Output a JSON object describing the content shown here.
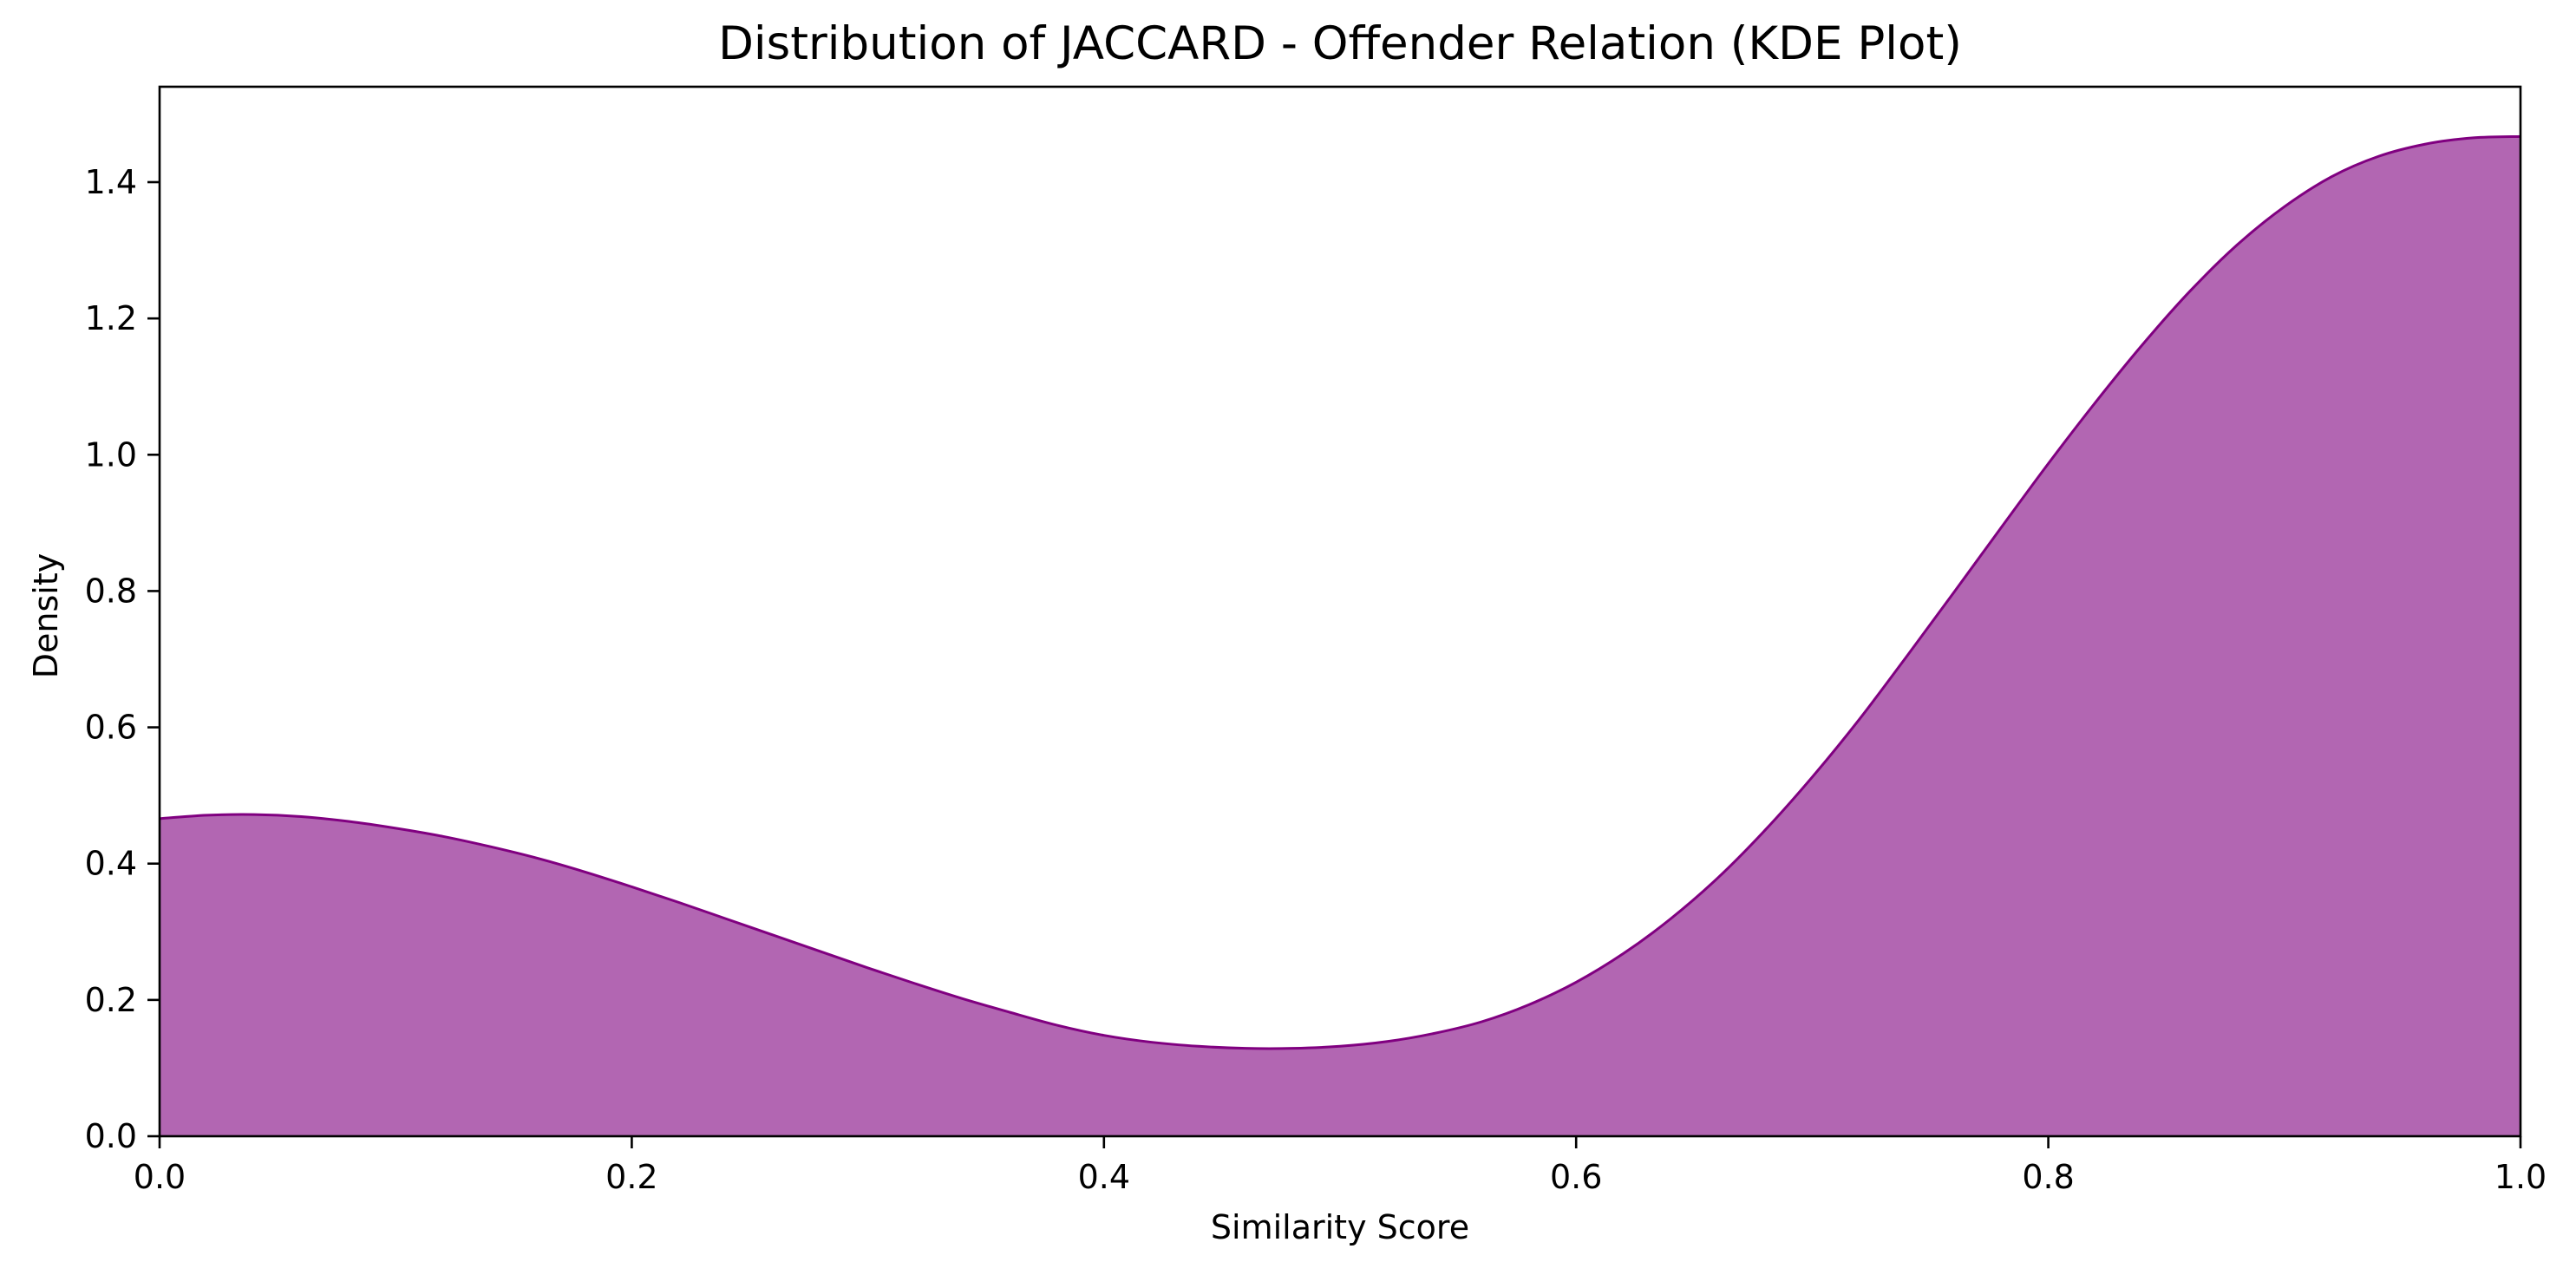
{
  "chart_data": {
    "type": "area",
    "title": "Distribution of JACCARD - Offender Relation (KDE Plot)",
    "xlabel": "Similarity Score",
    "ylabel": "Density",
    "xlim": [
      0.0,
      1.0
    ],
    "ylim": [
      0.0,
      1.54
    ],
    "xticks": [
      0.0,
      0.2,
      0.4,
      0.6,
      0.8,
      1.0
    ],
    "xtick_labels": [
      "0.0",
      "0.2",
      "0.4",
      "0.6",
      "0.8",
      "1.0"
    ],
    "yticks": [
      0.0,
      0.2,
      0.4,
      0.6,
      0.8,
      1.0,
      1.2,
      1.4
    ],
    "ytick_labels": [
      "0.0",
      "0.2",
      "0.4",
      "0.6",
      "0.8",
      "1.0",
      "1.2",
      "1.4"
    ],
    "grid": false,
    "legend": "none",
    "series": [
      {
        "color": "#800080",
        "fill_color": "#b266b2",
        "x": [
          0.0,
          0.02,
          0.04,
          0.06,
          0.08,
          0.1,
          0.12,
          0.14,
          0.16,
          0.18,
          0.2,
          0.22,
          0.24,
          0.26,
          0.28,
          0.3,
          0.32,
          0.34,
          0.36,
          0.38,
          0.4,
          0.42,
          0.44,
          0.46,
          0.48,
          0.5,
          0.52,
          0.54,
          0.56,
          0.58,
          0.6,
          0.62,
          0.64,
          0.66,
          0.68,
          0.7,
          0.72,
          0.74,
          0.76,
          0.78,
          0.8,
          0.82,
          0.84,
          0.86,
          0.88,
          0.9,
          0.92,
          0.94,
          0.96,
          0.98,
          1.0
        ],
        "y": [
          0.466,
          0.471,
          0.472,
          0.469,
          0.462,
          0.452,
          0.44,
          0.425,
          0.408,
          0.388,
          0.366,
          0.343,
          0.319,
          0.295,
          0.271,
          0.247,
          0.224,
          0.202,
          0.182,
          0.163,
          0.148,
          0.138,
          0.132,
          0.129,
          0.129,
          0.132,
          0.139,
          0.151,
          0.168,
          0.193,
          0.226,
          0.268,
          0.319,
          0.379,
          0.449,
          0.527,
          0.612,
          0.704,
          0.798,
          0.893,
          0.987,
          1.077,
          1.162,
          1.24,
          1.308,
          1.364,
          1.408,
          1.438,
          1.456,
          1.465,
          1.467
        ]
      }
    ]
  }
}
